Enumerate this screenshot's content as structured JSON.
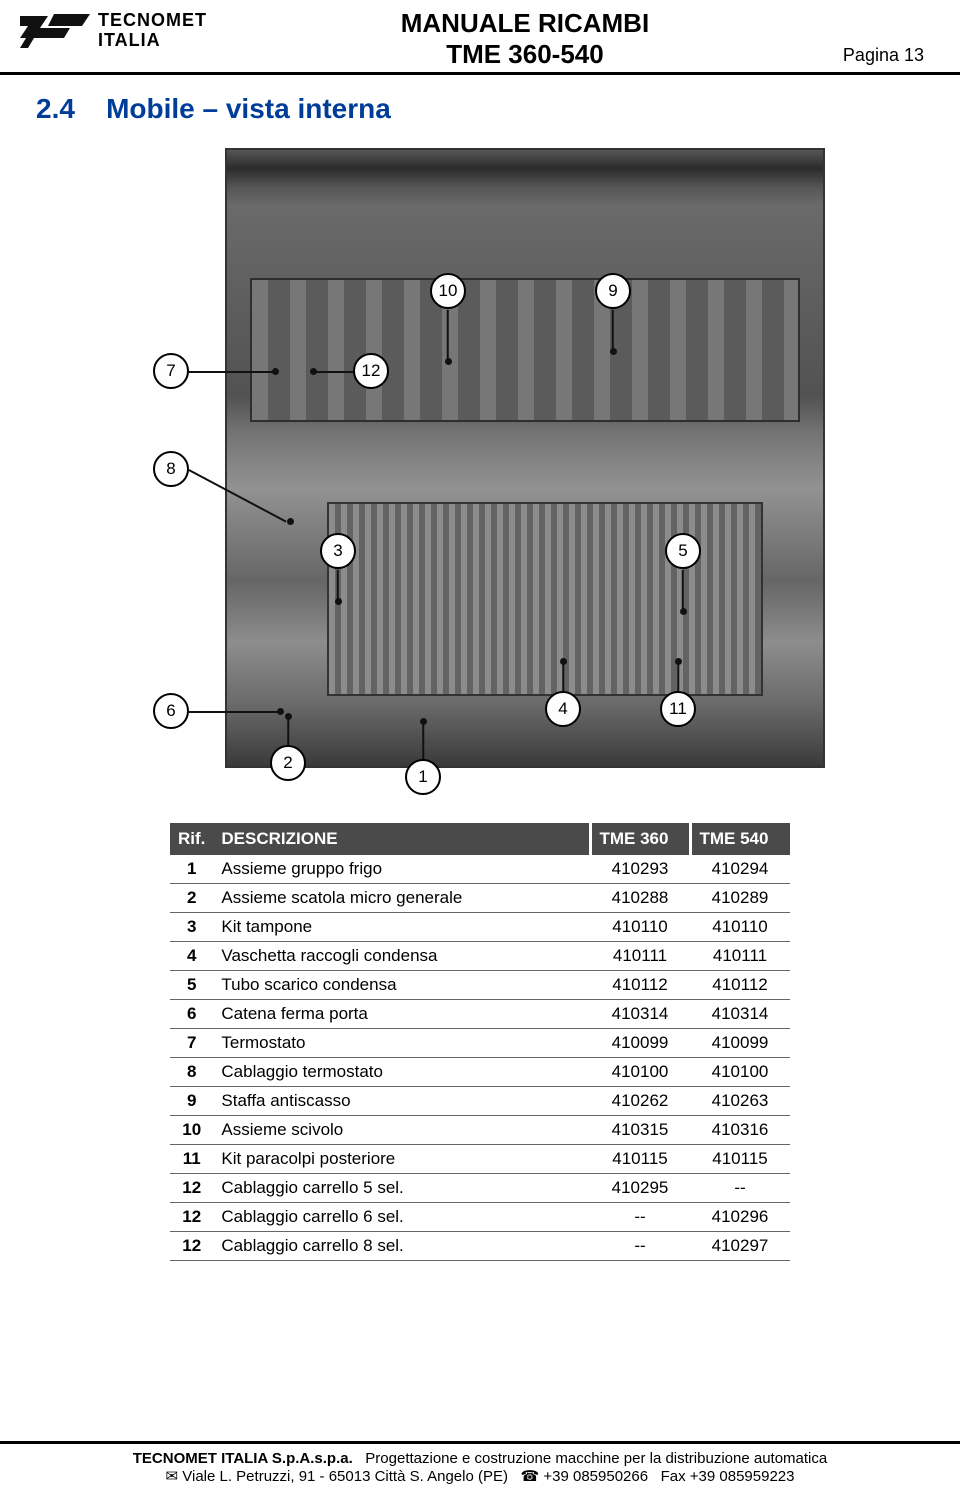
{
  "header": {
    "logo_line1": "TECNOMET",
    "logo_line2": "ITALIA",
    "title1": "MANUALE RICAMBI",
    "title2": "TME 360-540",
    "page_label": "Pagina 13"
  },
  "section": {
    "number": "2.4",
    "title": "Mobile – vista interna"
  },
  "callouts": {
    "c1": "1",
    "c2": "2",
    "c3": "3",
    "c4": "4",
    "c5": "5",
    "c6": "6",
    "c7": "7",
    "c8": "8",
    "c9": "9",
    "c10": "10",
    "c11": "11",
    "c12": "12"
  },
  "table": {
    "headers": {
      "rif": "Rif.",
      "desc": "DESCRIZIONE",
      "c1": "TME 360",
      "c2": "TME 540"
    },
    "rows": [
      {
        "rif": "1",
        "desc": "Assieme gruppo frigo",
        "c1": "410293",
        "c2": "410294"
      },
      {
        "rif": "2",
        "desc": "Assieme scatola micro generale",
        "c1": "410288",
        "c2": "410289"
      },
      {
        "rif": "3",
        "desc": "Kit tampone",
        "c1": "410110",
        "c2": "410110"
      },
      {
        "rif": "4",
        "desc": "Vaschetta raccogli condensa",
        "c1": "410111",
        "c2": "410111"
      },
      {
        "rif": "5",
        "desc": "Tubo scarico condensa",
        "c1": "410112",
        "c2": "410112"
      },
      {
        "rif": "6",
        "desc": "Catena ferma porta",
        "c1": "410314",
        "c2": "410314"
      },
      {
        "rif": "7",
        "desc": "Termostato",
        "c1": "410099",
        "c2": "410099"
      },
      {
        "rif": "8",
        "desc": "Cablaggio termostato",
        "c1": "410100",
        "c2": "410100"
      },
      {
        "rif": "9",
        "desc": "Staffa antiscasso",
        "c1": "410262",
        "c2": "410263"
      },
      {
        "rif": "10",
        "desc": "Assieme scivolo",
        "c1": "410315",
        "c2": "410316"
      },
      {
        "rif": "11",
        "desc": "Kit paracolpi posteriore",
        "c1": "410115",
        "c2": "410115"
      },
      {
        "rif": "12",
        "desc": "Cablaggio carrello 5 sel.",
        "c1": "410295",
        "c2": "--"
      },
      {
        "rif": "12",
        "desc": "Cablaggio carrello 6 sel.",
        "c1": "--",
        "c2": "410296"
      },
      {
        "rif": "12",
        "desc": "Cablaggio carrello 8 sel.",
        "c1": "--",
        "c2": "410297"
      }
    ]
  },
  "footer": {
    "company": "TECNOMET ITALIA S.p.A.s.p.a.",
    "desc": "Progettazione e costruzione macchine per la distribuzione automatica",
    "mail_icon": "✉",
    "address": "Viale L. Petruzzi, 91 - 65013 Città S. Angelo (PE)",
    "phone_icon": "☎",
    "phone": "+39 085950266",
    "fax_label": "Fax",
    "fax": "+39 085959223"
  }
}
